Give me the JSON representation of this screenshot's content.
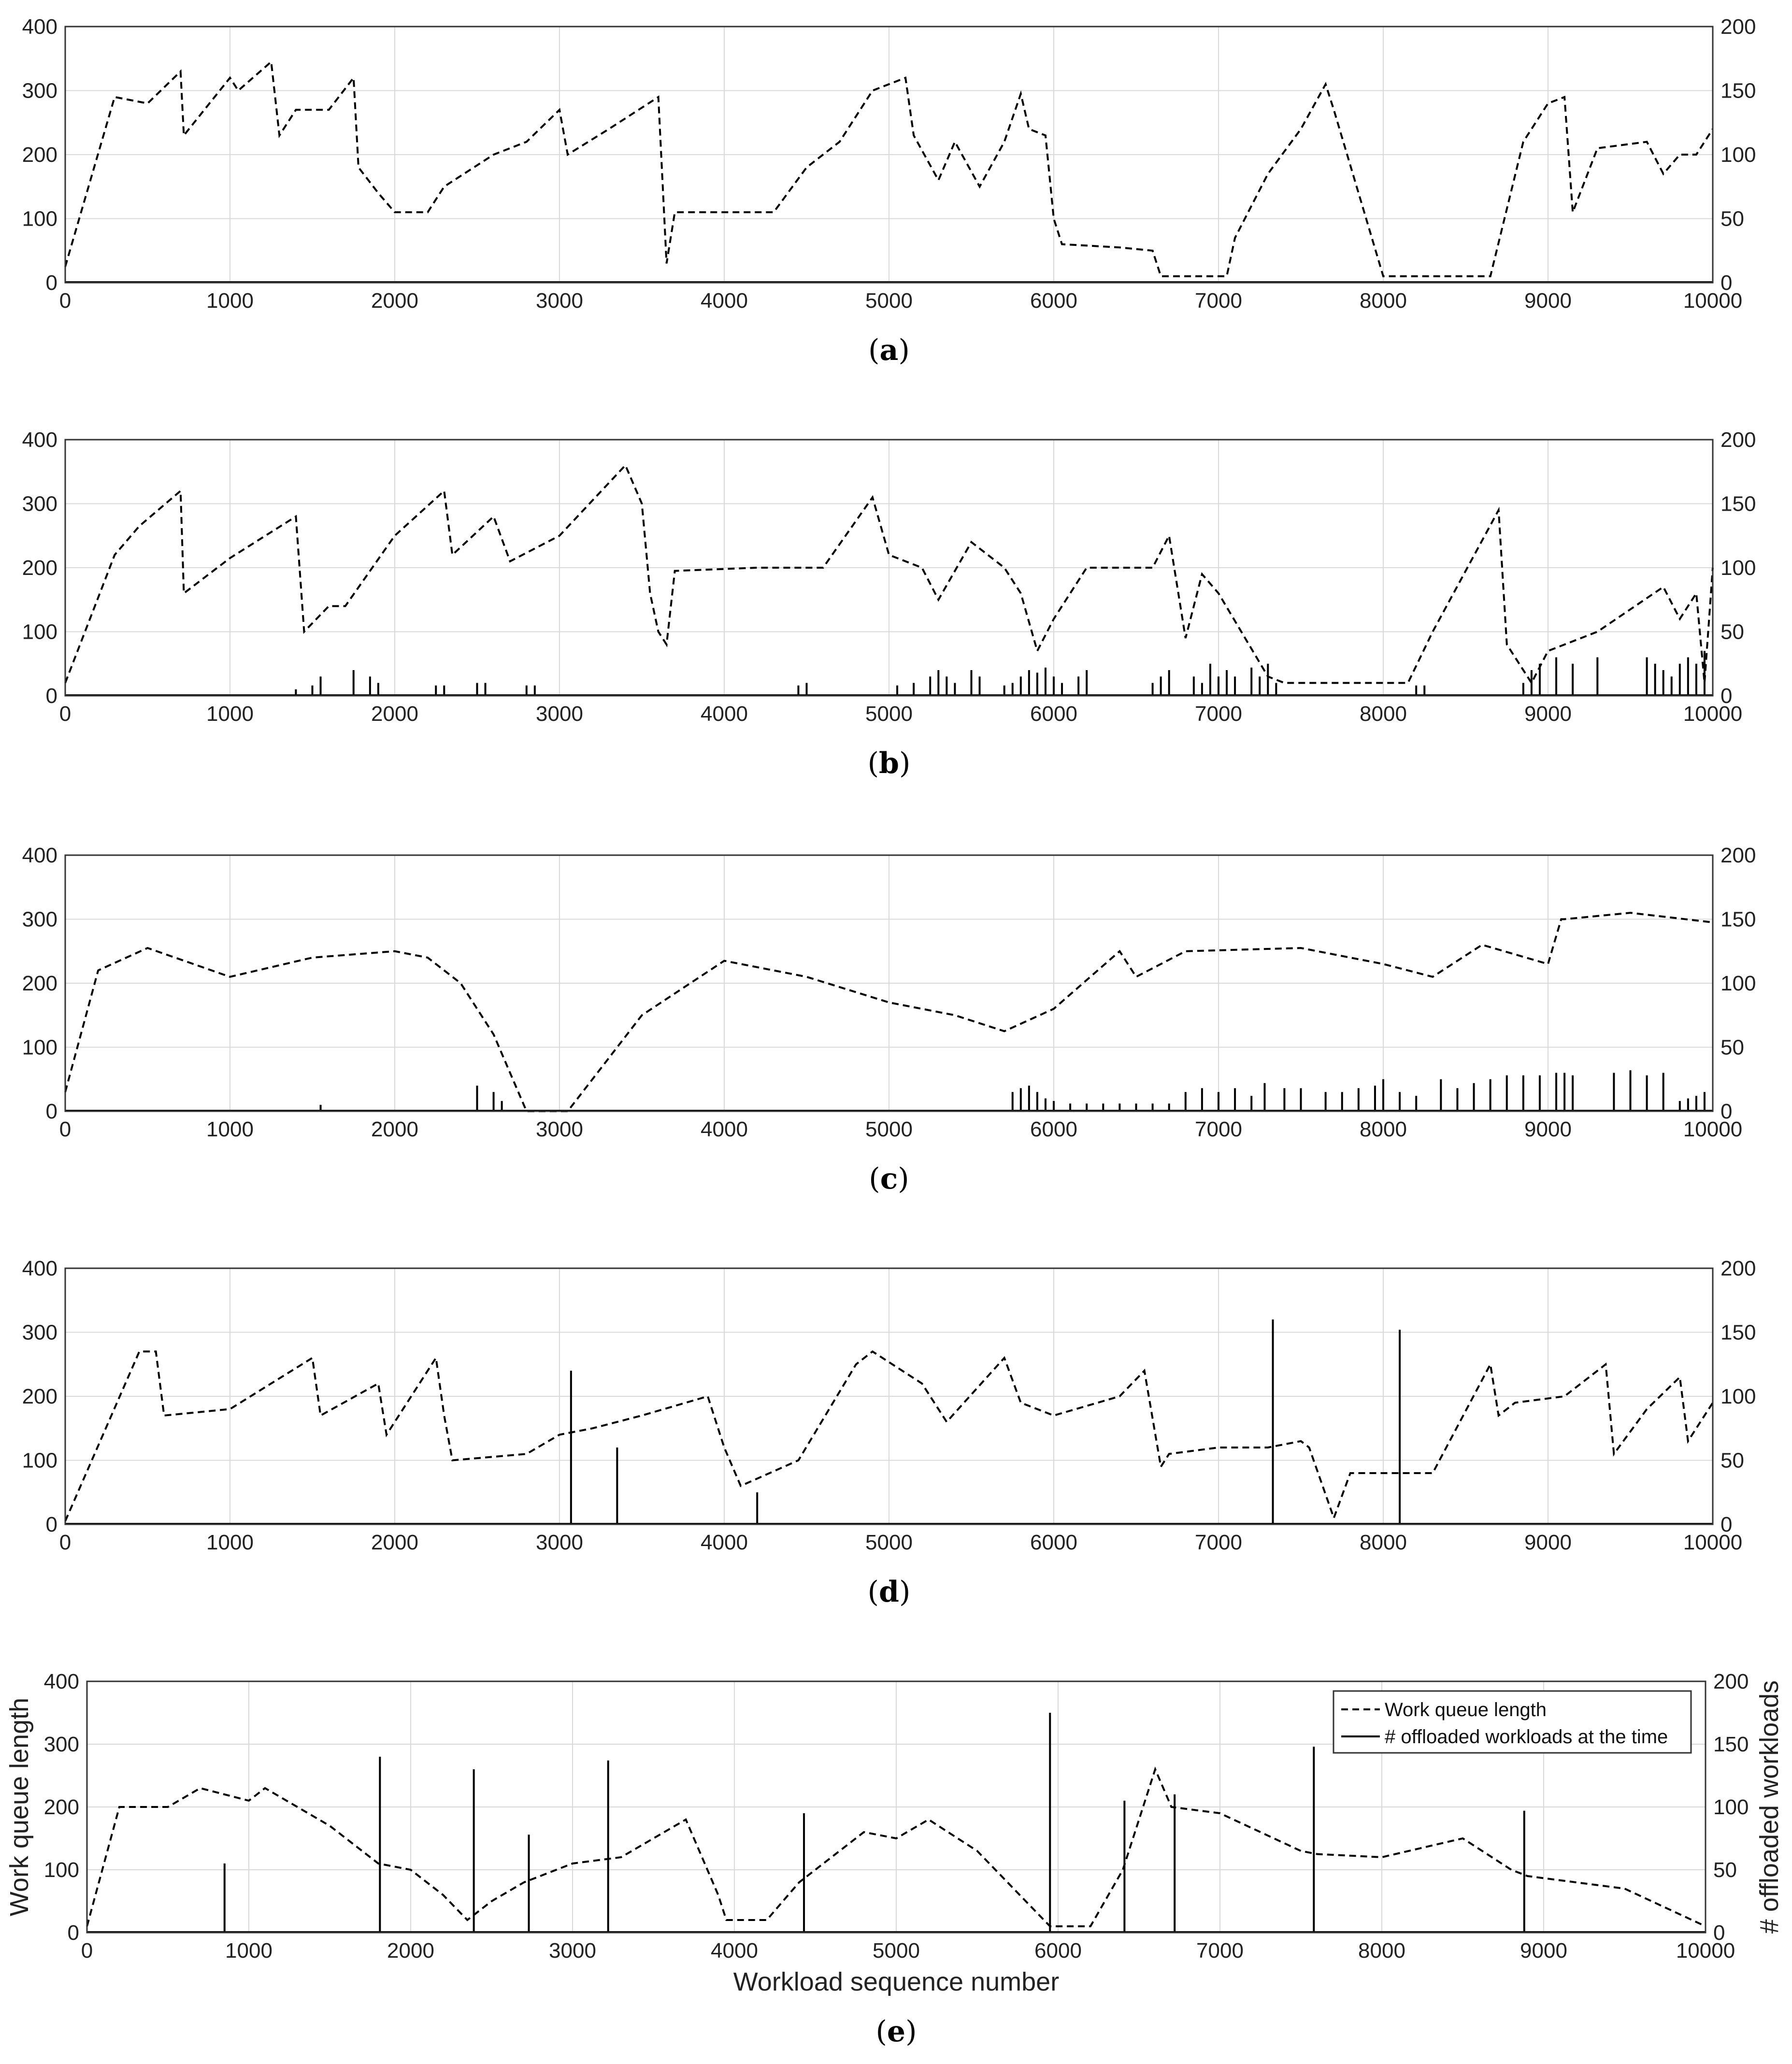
{
  "chart_data": [
    {
      "panel": "a",
      "type": "line",
      "caption_letter": "a",
      "xlim": [
        0,
        10000
      ],
      "ylim": [
        0,
        400
      ],
      "y2lim": [
        0,
        200
      ],
      "xticks": [
        0,
        1000,
        2000,
        3000,
        4000,
        5000,
        6000,
        7000,
        8000,
        9000,
        10000
      ],
      "yticks": [
        0,
        100,
        200,
        300,
        400
      ],
      "y2ticks": [
        0,
        50,
        100,
        150,
        200
      ],
      "grid": true,
      "series": [
        {
          "name": "Work queue length",
          "axis": "left",
          "style": "dashed",
          "x": [
            0,
            300,
            500,
            700,
            720,
            1000,
            1050,
            1250,
            1300,
            1400,
            1600,
            1750,
            1780,
            1900,
            2000,
            2200,
            2300,
            2600,
            2800,
            3000,
            3050,
            3300,
            3600,
            3650,
            3700,
            3750,
            4000,
            4300,
            4500,
            4700,
            4900,
            5100,
            5150,
            5300,
            5400,
            5550,
            5700,
            5800,
            5850,
            5950,
            6000,
            6050,
            6400,
            6600,
            6650,
            7050,
            7100,
            7300,
            7500,
            7650,
            7700,
            8000,
            8650,
            8850,
            9000,
            9100,
            9150,
            9300,
            9600,
            9700,
            9800,
            9900,
            10000
          ],
          "y": [
            25,
            290,
            280,
            330,
            230,
            320,
            300,
            345,
            230,
            270,
            270,
            320,
            180,
            140,
            110,
            110,
            150,
            200,
            220,
            270,
            200,
            240,
            290,
            30,
            110,
            110,
            110,
            110,
            180,
            220,
            300,
            320,
            230,
            160,
            220,
            150,
            220,
            295,
            240,
            230,
            100,
            60,
            55,
            50,
            10,
            10,
            70,
            170,
            240,
            310,
            270,
            10,
            10,
            220,
            280,
            290,
            110,
            210,
            220,
            170,
            200,
            200,
            240
          ]
        },
        {
          "name": "# offloaded workloads at the time",
          "axis": "right",
          "style": "bars",
          "x": [],
          "y": []
        }
      ]
    },
    {
      "panel": "b",
      "type": "line",
      "caption_letter": "b",
      "xlim": [
        0,
        10000
      ],
      "ylim": [
        0,
        400
      ],
      "y2lim": [
        0,
        200
      ],
      "xticks": [
        0,
        1000,
        2000,
        3000,
        4000,
        5000,
        6000,
        7000,
        8000,
        9000,
        10000
      ],
      "yticks": [
        0,
        100,
        200,
        300,
        400
      ],
      "y2ticks": [
        0,
        50,
        100,
        150,
        200
      ],
      "grid": true,
      "series": [
        {
          "name": "Work queue length",
          "axis": "left",
          "style": "dashed",
          "x": [
            0,
            300,
            450,
            700,
            720,
            1000,
            1400,
            1450,
            1600,
            1700,
            2000,
            2300,
            2350,
            2600,
            2700,
            3000,
            3400,
            3500,
            3550,
            3600,
            3650,
            3700,
            4200,
            4600,
            4900,
            5000,
            5200,
            5300,
            5500,
            5700,
            5800,
            5900,
            6000,
            6200,
            6600,
            6700,
            6800,
            6900,
            7000,
            7300,
            7400,
            8150,
            8300,
            8700,
            8750,
            8900,
            9000,
            9300,
            9700,
            9800,
            9900,
            9950,
            10000
          ],
          "y": [
            20,
            220,
            265,
            320,
            160,
            215,
            280,
            100,
            140,
            140,
            250,
            320,
            220,
            280,
            210,
            250,
            360,
            300,
            160,
            100,
            80,
            195,
            200,
            200,
            310,
            220,
            200,
            150,
            240,
            200,
            160,
            70,
            120,
            200,
            200,
            250,
            90,
            190,
            160,
            30,
            20,
            20,
            100,
            290,
            80,
            20,
            70,
            100,
            170,
            120,
            160,
            20,
            200
          ]
        },
        {
          "name": "# offloaded workloads at the time",
          "axis": "right",
          "style": "bars",
          "x": [
            1400,
            1500,
            1550,
            1750,
            1850,
            1900,
            2250,
            2300,
            2500,
            2550,
            2800,
            2850,
            4450,
            4500,
            5050,
            5150,
            5250,
            5300,
            5350,
            5400,
            5500,
            5550,
            5700,
            5750,
            5800,
            5850,
            5900,
            5950,
            6000,
            6050,
            6150,
            6200,
            6600,
            6650,
            6700,
            6850,
            6900,
            6950,
            7000,
            7050,
            7100,
            7200,
            7250,
            7300,
            7350,
            8200,
            8250,
            8850,
            8900,
            8950,
            9050,
            9150,
            9300,
            9600,
            9650,
            9700,
            9750,
            9800,
            9850,
            9900,
            9950
          ],
          "y": [
            5,
            8,
            15,
            20,
            15,
            10,
            8,
            8,
            10,
            10,
            8,
            8,
            8,
            10,
            8,
            10,
            15,
            20,
            15,
            10,
            20,
            15,
            8,
            10,
            15,
            20,
            18,
            22,
            15,
            10,
            15,
            20,
            10,
            15,
            20,
            15,
            10,
            25,
            15,
            20,
            15,
            22,
            15,
            25,
            10,
            8,
            8,
            10,
            20,
            25,
            30,
            25,
            30,
            30,
            25,
            20,
            15,
            25,
            30,
            25,
            35
          ]
        }
      ]
    },
    {
      "panel": "c",
      "type": "line",
      "caption_letter": "c",
      "xlim": [
        0,
        10000
      ],
      "ylim": [
        0,
        400
      ],
      "y2lim": [
        0,
        200
      ],
      "xticks": [
        0,
        1000,
        2000,
        3000,
        4000,
        5000,
        6000,
        7000,
        8000,
        9000,
        10000
      ],
      "yticks": [
        0,
        100,
        200,
        300,
        400
      ],
      "y2ticks": [
        0,
        50,
        100,
        150,
        200
      ],
      "grid": true,
      "series": [
        {
          "name": "Work queue length",
          "axis": "left",
          "style": "dashed",
          "x": [
            0,
            200,
            500,
            1000,
            1500,
            2000,
            2200,
            2400,
            2600,
            2800,
            3050,
            3200,
            3500,
            4000,
            4500,
            5000,
            5400,
            5700,
            6000,
            6400,
            6500,
            6800,
            7500,
            8000,
            8300,
            8600,
            9000,
            9080,
            9100,
            9500,
            10000
          ],
          "y": [
            30,
            220,
            255,
            210,
            240,
            250,
            240,
            200,
            120,
            0,
            0,
            50,
            150,
            235,
            210,
            170,
            150,
            125,
            160,
            250,
            210,
            250,
            255,
            230,
            210,
            260,
            230,
            300,
            300,
            310,
            295
          ]
        },
        {
          "name": "# offloaded workloads at the time",
          "axis": "right",
          "style": "bars",
          "x": [
            1550,
            2500,
            2600,
            2650,
            5750,
            5800,
            5850,
            5900,
            5950,
            6000,
            6100,
            6200,
            6300,
            6400,
            6500,
            6600,
            6700,
            6800,
            6900,
            7000,
            7100,
            7200,
            7280,
            7400,
            7500,
            7650,
            7750,
            7850,
            7950,
            8000,
            8100,
            8200,
            8350,
            8450,
            8550,
            8650,
            8750,
            8850,
            8950,
            9050,
            9100,
            9150,
            9400,
            9500,
            9600,
            9700,
            9800,
            9850,
            9900,
            9950
          ],
          "y": [
            5,
            20,
            15,
            8,
            15,
            18,
            20,
            15,
            10,
            8,
            6,
            6,
            6,
            6,
            6,
            6,
            6,
            15,
            18,
            15,
            18,
            12,
            22,
            18,
            18,
            15,
            15,
            18,
            20,
            25,
            15,
            12,
            25,
            18,
            22,
            25,
            28,
            28,
            28,
            30,
            30,
            28,
            30,
            32,
            28,
            30,
            8,
            10,
            12,
            15
          ]
        }
      ]
    },
    {
      "panel": "d",
      "type": "line",
      "caption_letter": "d",
      "xlim": [
        0,
        10000
      ],
      "ylim": [
        0,
        400
      ],
      "y2lim": [
        0,
        200
      ],
      "xticks": [
        0,
        1000,
        2000,
        3000,
        4000,
        5000,
        6000,
        7000,
        8000,
        9000,
        10000
      ],
      "yticks": [
        0,
        100,
        200,
        300,
        400
      ],
      "y2ticks": [
        0,
        50,
        100,
        150,
        200
      ],
      "grid": true,
      "series": [
        {
          "name": "Work queue length",
          "axis": "left",
          "style": "dashed",
          "x": [
            0,
            450,
            550,
            600,
            1000,
            1500,
            1550,
            1900,
            1950,
            2250,
            2300,
            2350,
            2800,
            3000,
            3200,
            3500,
            3900,
            4000,
            4100,
            4450,
            4800,
            4900,
            5200,
            5350,
            5700,
            5800,
            6000,
            6400,
            6550,
            6650,
            6700,
            7000,
            7300,
            7500,
            7550,
            7700,
            7800,
            8100,
            8300,
            8650,
            8700,
            8800,
            9100,
            9350,
            9400,
            9600,
            9800,
            9850,
            10000
          ],
          "y": [
            5,
            270,
            270,
            170,
            180,
            260,
            170,
            220,
            140,
            260,
            170,
            100,
            110,
            140,
            150,
            170,
            200,
            120,
            60,
            100,
            250,
            270,
            220,
            160,
            260,
            190,
            170,
            200,
            240,
            90,
            110,
            120,
            120,
            130,
            120,
            10,
            80,
            80,
            80,
            250,
            170,
            190,
            200,
            250,
            110,
            180,
            230,
            130,
            190
          ]
        },
        {
          "name": "# offloaded workloads at the time",
          "axis": "right",
          "style": "bars",
          "x": [
            3070,
            3350,
            4200,
            7330,
            8100
          ],
          "y": [
            120,
            60,
            25,
            160,
            152
          ]
        }
      ]
    },
    {
      "panel": "e",
      "type": "line",
      "caption_letter": "e",
      "xlim": [
        0,
        10000
      ],
      "ylim": [
        0,
        400
      ],
      "y2lim": [
        0,
        200
      ],
      "xticks": [
        0,
        1000,
        2000,
        3000,
        4000,
        5000,
        6000,
        7000,
        8000,
        9000,
        10000
      ],
      "yticks": [
        0,
        100,
        200,
        300,
        400
      ],
      "y2ticks": [
        0,
        50,
        100,
        150,
        200
      ],
      "grid": true,
      "xlabel": "Workload sequence number",
      "ylabel": "Work queue length",
      "y2label": "# offloaded workloads",
      "legend_position": "top-right",
      "series": [
        {
          "name": "Work queue length",
          "axis": "left",
          "style": "dashed",
          "x": [
            0,
            200,
            500,
            700,
            1000,
            1100,
            1500,
            1800,
            2000,
            2200,
            2350,
            2500,
            2700,
            3000,
            3300,
            3500,
            3700,
            3900,
            3950,
            4200,
            4400,
            4800,
            5000,
            5200,
            5500,
            5800,
            5950,
            6100,
            6200,
            6400,
            6600,
            6700,
            7000,
            7500,
            7600,
            8000,
            8500,
            8800,
            8900,
            9500,
            10000
          ],
          "y": [
            10,
            200,
            200,
            230,
            210,
            230,
            170,
            110,
            100,
            60,
            20,
            50,
            80,
            110,
            120,
            150,
            180,
            60,
            20,
            20,
            80,
            160,
            150,
            180,
            130,
            50,
            10,
            10,
            10,
            100,
            260,
            200,
            190,
            130,
            125,
            120,
            150,
            100,
            90,
            70,
            10
          ]
        },
        {
          "name": "# offloaded workloads at the time",
          "axis": "right",
          "style": "bars",
          "x": [
            850,
            1810,
            2390,
            2730,
            3220,
            4430,
            5950,
            6410,
            6720,
            7580,
            8880
          ],
          "y": [
            55,
            140,
            130,
            78,
            137,
            95,
            175,
            105,
            110,
            148,
            97
          ]
        }
      ]
    }
  ]
}
